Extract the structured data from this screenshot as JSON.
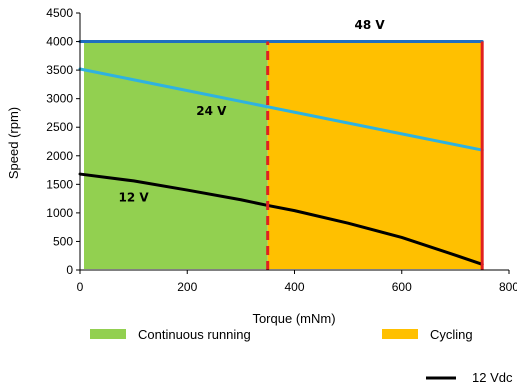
{
  "chart_data": {
    "type": "line",
    "xlabel": "Torque (mNm)",
    "ylabel": "Speed (rpm)",
    "xlim": [
      0,
      800
    ],
    "ylim": [
      0,
      4500
    ],
    "xticks": [
      "0",
      "200",
      "400",
      "600",
      "800"
    ],
    "yticks": [
      "0",
      "500",
      "1000",
      "1500",
      "2000",
      "2500",
      "3000",
      "3500",
      "4000",
      "4500"
    ],
    "grid": false,
    "regions": [
      {
        "name": "Continuous running",
        "x_range": [
          0,
          350
        ],
        "y_range": [
          0,
          4000
        ],
        "color": "#92d050"
      },
      {
        "name": "Cycling",
        "x_range": [
          350,
          750
        ],
        "y_range": [
          0,
          4000
        ],
        "color": "#ffc000"
      }
    ],
    "limits": [
      {
        "style": "dashed",
        "x": 350,
        "y_range": [
          0,
          4000
        ],
        "color": "#e02020"
      },
      {
        "style": "solid",
        "x": 750,
        "y_range": [
          0,
          4000
        ],
        "color": "#e02020"
      }
    ],
    "series": [
      {
        "name": "48 V",
        "color": "#1f6fc0",
        "x": [
          0,
          750
        ],
        "y": [
          4000,
          4000
        ],
        "label_at": [
          540,
          4220
        ]
      },
      {
        "name": "24 V",
        "color": "#2fb2e0",
        "x": [
          0,
          750
        ],
        "y": [
          3520,
          2100
        ],
        "label_at": [
          245,
          2710
        ]
      },
      {
        "name": "12 V",
        "color": "#000000",
        "x": [
          0,
          100,
          200,
          300,
          350,
          400,
          500,
          600,
          700,
          750
        ],
        "y": [
          1680,
          1560,
          1400,
          1230,
          1130,
          1040,
          820,
          570,
          260,
          100
        ],
        "label_at": [
          100,
          1200
        ]
      }
    ],
    "legend": {
      "placement": "bottom",
      "items": [
        {
          "label": "Continuous running",
          "color": "#92d050"
        },
        {
          "label": "Cycling",
          "color": "#ffc000"
        },
        {
          "label": "12 Vdc",
          "color": "#000000"
        }
      ]
    }
  }
}
